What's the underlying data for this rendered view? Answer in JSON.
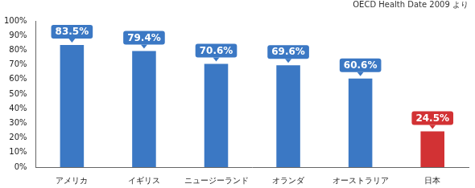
{
  "chart_data": {
    "type": "bar",
    "subtitle": "OECD Health Date 2009 より",
    "categories": [
      "アメリカ",
      "イギリス",
      "ニュージーランド",
      "オランダ",
      "オーストラリア",
      "日本"
    ],
    "values": [
      83.5,
      79.4,
      70.6,
      69.6,
      60.6,
      24.5
    ],
    "value_labels": [
      "83.5%",
      "79.4%",
      "70.6%",
      "69.6%",
      "60.6%",
      "24.5%"
    ],
    "colors": [
      "#3b78c4",
      "#3b78c4",
      "#3b78c4",
      "#3b78c4",
      "#3b78c4",
      "#d23234"
    ],
    "ylim": [
      0,
      100
    ],
    "yticks": [
      {
        "value": 0,
        "label": "0%"
      },
      {
        "value": 10,
        "label": "10%"
      },
      {
        "value": 20,
        "label": "20%"
      },
      {
        "value": 30,
        "label": "30%"
      },
      {
        "value": 40,
        "label": "40%"
      },
      {
        "value": 50,
        "label": "50%"
      },
      {
        "value": 60,
        "label": "60%"
      },
      {
        "value": 70,
        "label": "70%"
      },
      {
        "value": 80,
        "label": "80%"
      },
      {
        "value": 90,
        "label": "90%"
      },
      {
        "value": 100,
        "label": "100%"
      }
    ],
    "grid": false,
    "data_labels": true
  }
}
